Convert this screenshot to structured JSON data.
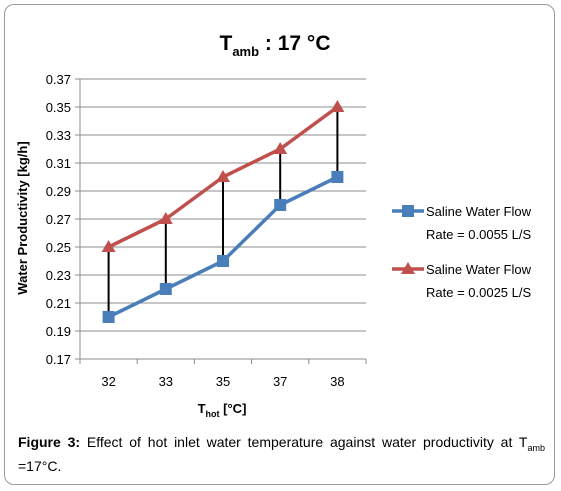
{
  "chart_data": {
    "type": "line",
    "title": {
      "main": "T",
      "sub": "amb",
      "rest": " : 17 °C"
    },
    "xlabel": {
      "main": "T",
      "sub": "hot",
      "rest": " [°C]"
    },
    "ylabel": "Water Productivity [kg/h]",
    "categories": [
      "32",
      "33",
      "35",
      "37",
      "38"
    ],
    "ylim": [
      0.17,
      0.37
    ],
    "yticks": [
      "0.17",
      "0.19",
      "0.21",
      "0.23",
      "0.25",
      "0.27",
      "0.29",
      "0.31",
      "0.33",
      "0.35",
      "0.37"
    ],
    "grid": true,
    "legend_position": "right",
    "drop_lines": true,
    "series": [
      {
        "name_line1": "Saline Water Flow",
        "name_line2": "Rate = 0.0055 L/S",
        "values": [
          0.2,
          0.22,
          0.24,
          0.28,
          0.3
        ],
        "color": "#4a7ebb",
        "marker": "square"
      },
      {
        "name_line1": "Saline Water Flow",
        "name_line2": "Rate = 0.0025 L/S",
        "values": [
          0.25,
          0.27,
          0.3,
          0.32,
          0.35
        ],
        "color": "#c0504d",
        "marker": "triangle"
      }
    ]
  },
  "caption": {
    "label": "Figure 3:",
    "text": " Effect of hot inlet water temperature against water productivity at T",
    "sub": "amb",
    "text2": " =17°C."
  }
}
